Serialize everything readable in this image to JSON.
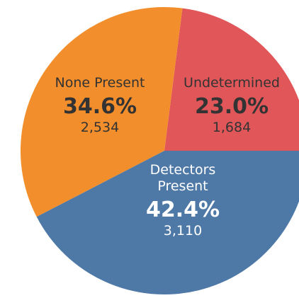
{
  "chart_data": {
    "type": "pie",
    "categories": [
      "Undetermined",
      "None Present",
      "Detectors Present"
    ],
    "values": [
      23.0,
      34.6,
      42.4
    ],
    "value_labels": [
      "23.0%",
      "34.6%",
      "42.4%"
    ],
    "counts": [
      1684,
      2534,
      3110
    ],
    "count_labels": [
      "1,684",
      "2,534",
      "3,110"
    ],
    "colors": [
      "#e15759",
      "#f28e2b",
      "#4e79a7"
    ]
  }
}
